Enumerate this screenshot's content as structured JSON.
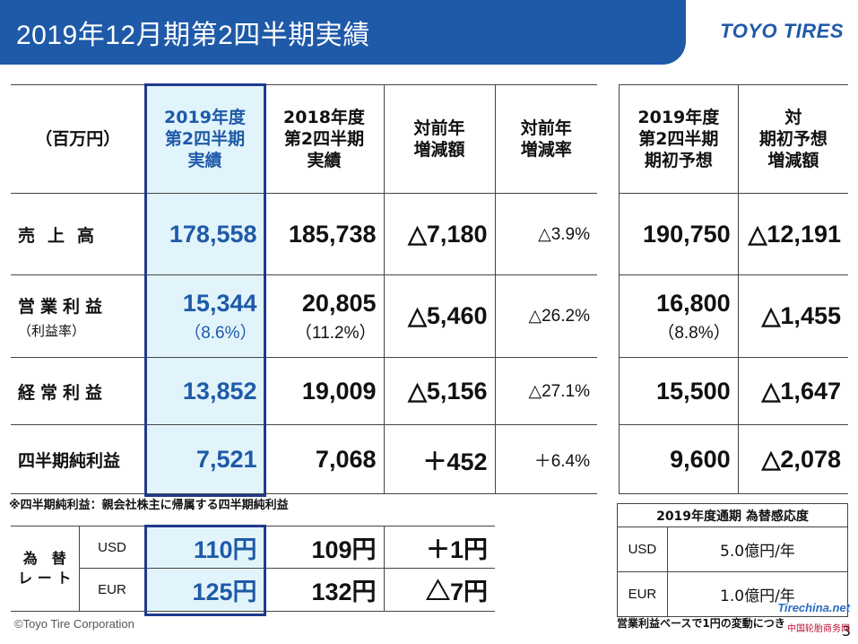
{
  "header": {
    "title": "2019年12月期第2四半期実績",
    "logo": "TOYO TIRES"
  },
  "main_table": {
    "unit_label": "（百万円）",
    "col_headers": [
      [
        "2019年度",
        "第2四半期",
        "実績"
      ],
      [
        "2018年度",
        "第2四半期",
        "実績"
      ],
      [
        "対前年",
        "増減額"
      ],
      [
        "対前年",
        "増減率"
      ]
    ],
    "rows": [
      {
        "label": "売上高",
        "sub": "",
        "cur": "178,558",
        "cur_sub": "",
        "prev": "185,738",
        "prev_sub": "",
        "diff": "△7,180",
        "rate": "△3.9%"
      },
      {
        "label": "営業利益",
        "sub": "（利益率）",
        "cur": "15,344",
        "cur_sub": "（8.6%）",
        "prev": "20,805",
        "prev_sub": "（11.2%）",
        "diff": "△5,460",
        "rate": "△26.2%"
      },
      {
        "label": "経常利益",
        "sub": "",
        "cur": "13,852",
        "cur_sub": "",
        "prev": "19,009",
        "prev_sub": "",
        "diff": "△5,156",
        "rate": "△27.1%"
      },
      {
        "label": "四半期純利益",
        "sub": "",
        "cur": "7,521",
        "cur_sub": "",
        "prev": "7,068",
        "prev_sub": "",
        "diff": "＋452",
        "rate": "＋6.4%"
      }
    ]
  },
  "forecast_table": {
    "col_headers": [
      [
        "2019年度",
        "第2四半期",
        "期初予想"
      ],
      [
        "対",
        "期初予想",
        "増減額"
      ]
    ],
    "rows": [
      {
        "forecast": "190,750",
        "forecast_sub": "",
        "diff": "△12,191"
      },
      {
        "forecast": "16,800",
        "forecast_sub": "（8.8%）",
        "diff": "△1,455"
      },
      {
        "forecast": "15,500",
        "forecast_sub": "",
        "diff": "△1,647"
      },
      {
        "forecast": "9,600",
        "forecast_sub": "",
        "diff": "△2,078"
      }
    ]
  },
  "footnote": "※四半期純利益：親会社株主に帰属する四半期純利益",
  "fx_table": {
    "side_label_top": "為　替",
    "side_label_bottom": "レ ー ト",
    "rows": [
      {
        "currency": "USD",
        "cur": "110円",
        "prev": "109円",
        "diff": "＋1円"
      },
      {
        "currency": "EUR",
        "cur": "125円",
        "prev": "132円",
        "diff": "△7円"
      }
    ]
  },
  "sensitivity": {
    "title": "2019年度通期 為替感応度",
    "rows": [
      {
        "currency": "USD",
        "value": "5.0億円/年"
      },
      {
        "currency": "EUR",
        "value": "1.0億円/年"
      }
    ],
    "note": "営業利益ベースで1円の変動につき"
  },
  "footer": {
    "copyright": "©Toyo Tire Corporation",
    "page": "3"
  },
  "watermark": {
    "site": "Tirechina.net",
    "tagline": "中国轮胎商务网"
  },
  "colors": {
    "brand_blue": "#1f5aa8",
    "highlight": "#e2f4fb",
    "box_border": "#1f3a8c"
  }
}
